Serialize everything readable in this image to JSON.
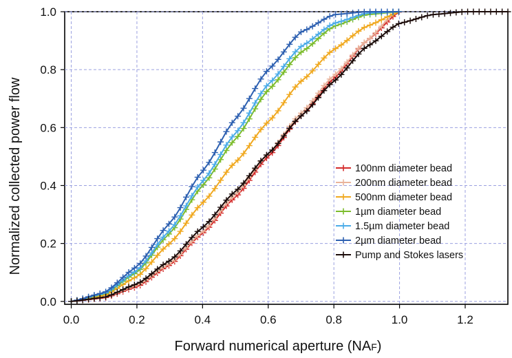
{
  "chart_data": {
    "type": "line",
    "xlabel": "Forward numerical aperture (NA",
    "xlabel_subscript": "F",
    "xlabel_close": ")",
    "ylabel": "Normalized collected power flow",
    "xlim": [
      -0.02,
      1.33
    ],
    "ylim": [
      -0.01,
      1.0
    ],
    "x_ticks": [
      "0.0",
      "0.2",
      "0.4",
      "0.6",
      "0.8",
      "1.0",
      "1.2"
    ],
    "y_ticks": [
      "0.0",
      "0.2",
      "0.4",
      "0.6",
      "0.8",
      "1.0"
    ],
    "grid": true,
    "grid_style": "dashed",
    "legend_position": "bottom-right",
    "marker": "plus",
    "series": [
      {
        "name": "100nm diameter bead",
        "color": "#d42a2a",
        "x": [
          0.0,
          0.1,
          0.2,
          0.3,
          0.4,
          0.5,
          0.6,
          0.7,
          0.8,
          0.9,
          1.0
        ],
        "y": [
          0.0,
          0.012,
          0.05,
          0.125,
          0.235,
          0.36,
          0.5,
          0.64,
          0.77,
          0.9,
          1.0
        ]
      },
      {
        "name": "200nm diameter bead",
        "color": "#e9b39b",
        "x": [
          0.0,
          0.1,
          0.2,
          0.3,
          0.4,
          0.5,
          0.6,
          0.7,
          0.8,
          0.9,
          0.99
        ],
        "y": [
          0.0,
          0.014,
          0.055,
          0.13,
          0.24,
          0.37,
          0.51,
          0.65,
          0.78,
          0.9,
          1.0
        ]
      },
      {
        "name": "500nm diameter bead",
        "color": "#f0a81e",
        "x": [
          0.0,
          0.1,
          0.2,
          0.3,
          0.4,
          0.5,
          0.6,
          0.7,
          0.8,
          0.9,
          1.0
        ],
        "y": [
          0.0,
          0.02,
          0.085,
          0.2,
          0.34,
          0.48,
          0.62,
          0.76,
          0.87,
          0.95,
          1.0
        ]
      },
      {
        "name": "1µm diameter bead",
        "color": "#7cbc2c",
        "x": [
          0.0,
          0.1,
          0.2,
          0.3,
          0.4,
          0.5,
          0.6,
          0.7,
          0.8,
          0.9,
          1.0
        ],
        "y": [
          0.0,
          0.025,
          0.1,
          0.235,
          0.4,
          0.56,
          0.73,
          0.86,
          0.95,
          0.99,
          1.0
        ]
      },
      {
        "name": "1.5µm diameter bead",
        "color": "#4aabe8",
        "x": [
          0.0,
          0.1,
          0.2,
          0.3,
          0.4,
          0.5,
          0.6,
          0.7,
          0.8,
          0.9,
          1.0
        ],
        "y": [
          0.0,
          0.027,
          0.106,
          0.245,
          0.415,
          0.58,
          0.75,
          0.88,
          0.96,
          0.995,
          1.0
        ]
      },
      {
        "name": "2µm diameter bead",
        "color": "#2c5fb0",
        "x": [
          0.0,
          0.1,
          0.2,
          0.3,
          0.4,
          0.5,
          0.6,
          0.7,
          0.8,
          0.9,
          1.0
        ],
        "y": [
          0.0,
          0.03,
          0.12,
          0.27,
          0.45,
          0.63,
          0.8,
          0.93,
          0.99,
          1.0,
          1.0
        ]
      },
      {
        "name": "Pump and Stokes lasers",
        "color": "#1a0a08",
        "x": [
          0.0,
          0.1,
          0.2,
          0.3,
          0.4,
          0.5,
          0.6,
          0.7,
          0.8,
          0.9,
          1.0,
          1.1,
          1.2,
          1.3,
          1.33
        ],
        "y": [
          0.0,
          0.014,
          0.06,
          0.14,
          0.255,
          0.38,
          0.51,
          0.64,
          0.76,
          0.88,
          0.96,
          0.99,
          1.0,
          1.0,
          1.0
        ]
      }
    ]
  }
}
